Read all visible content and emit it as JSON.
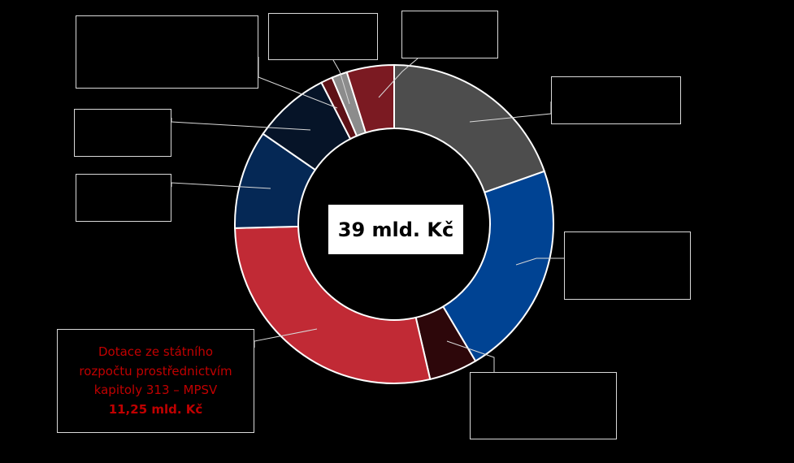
{
  "chart_data": {
    "type": "pie",
    "donut": true,
    "center_label": "39 mld. Kč",
    "colors": {
      "background": "#000000",
      "slice_stroke": "#ffffff",
      "callout_border": "#d9d9d9",
      "highlight_text": "#c00000"
    },
    "slices": [
      {
        "value": 20.0,
        "color": "#4d4d4d"
      },
      {
        "value": 22.3,
        "color": "#004393"
      },
      {
        "value": 5.0,
        "color": "#2d070a"
      },
      {
        "value": 28.8,
        "color": "#c12a35",
        "label_lines": [
          "Dotace ze státního",
          "rozpočtu prostřednictvím",
          "kapitoly 313 – MPSV"
        ],
        "value_label": "11,25 mld. Kč"
      },
      {
        "value": 10.2,
        "color": "#052855"
      },
      {
        "value": 8.0,
        "color": "#061428"
      },
      {
        "value": 1.2,
        "color": "#5e1116"
      },
      {
        "value": 1.6,
        "color": "#8c8c8c"
      },
      {
        "value": 4.9,
        "color": "#7b1a22"
      }
    ]
  }
}
